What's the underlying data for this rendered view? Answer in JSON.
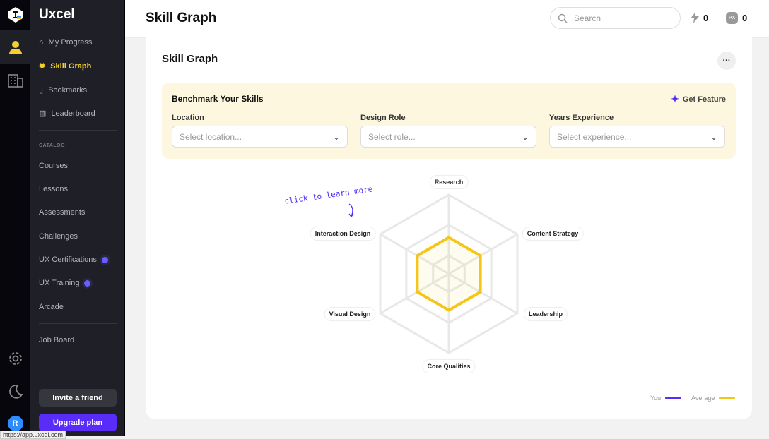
{
  "brand": "Uxcel",
  "sidebar": {
    "items": [
      {
        "label": "My Progress",
        "icon": "home-icon"
      },
      {
        "label": "Skill Graph",
        "icon": "gear-badge-icon"
      },
      {
        "label": "Bookmarks",
        "icon": "bookmark-icon"
      },
      {
        "label": "Leaderboard",
        "icon": "bar-chart-icon"
      }
    ],
    "catalog_label": "CATALOG",
    "catalog": [
      {
        "label": "Courses"
      },
      {
        "label": "Lessons"
      },
      {
        "label": "Assessments"
      },
      {
        "label": "Challenges"
      },
      {
        "label": "UX Certifications",
        "dot": true
      },
      {
        "label": "UX Training",
        "dot": true
      },
      {
        "label": "Arcade"
      }
    ],
    "job_board": "Job Board",
    "invite": "Invite a friend",
    "upgrade": "Upgrade plan"
  },
  "rail": {
    "avatar": "R"
  },
  "status_url": "https://app.uxcel.com",
  "header": {
    "title": "Skill Graph",
    "search_placeholder": "Search",
    "streak": "0",
    "px": "0",
    "px_badge": "PX"
  },
  "card": {
    "title": "Skill Graph",
    "more": "···",
    "benchmark": {
      "title": "Benchmark Your Skills",
      "get_feature": "Get Feature",
      "fields": [
        {
          "label": "Location",
          "placeholder": "Select location..."
        },
        {
          "label": "Design Role",
          "placeholder": "Select role..."
        },
        {
          "label": "Years Experience",
          "placeholder": "Select experience..."
        }
      ]
    },
    "hint": "click to learn more"
  },
  "colors": {
    "you": "#5a2cf8",
    "average": "#f5c518",
    "accent": "#5a2cf8"
  },
  "chart_data": {
    "type": "radar",
    "axes": [
      "Research",
      "Content Strategy",
      "Leadership",
      "Core Qualities",
      "Visual Design",
      "Interaction Design"
    ],
    "range": [
      0,
      100
    ],
    "grid_levels": [
      23,
      62,
      100
    ],
    "series": [
      {
        "name": "You",
        "values": []
      },
      {
        "name": "Average",
        "values": [
          46,
          46,
          46,
          46,
          46,
          46
        ]
      }
    ],
    "legend": "bottom-right"
  }
}
